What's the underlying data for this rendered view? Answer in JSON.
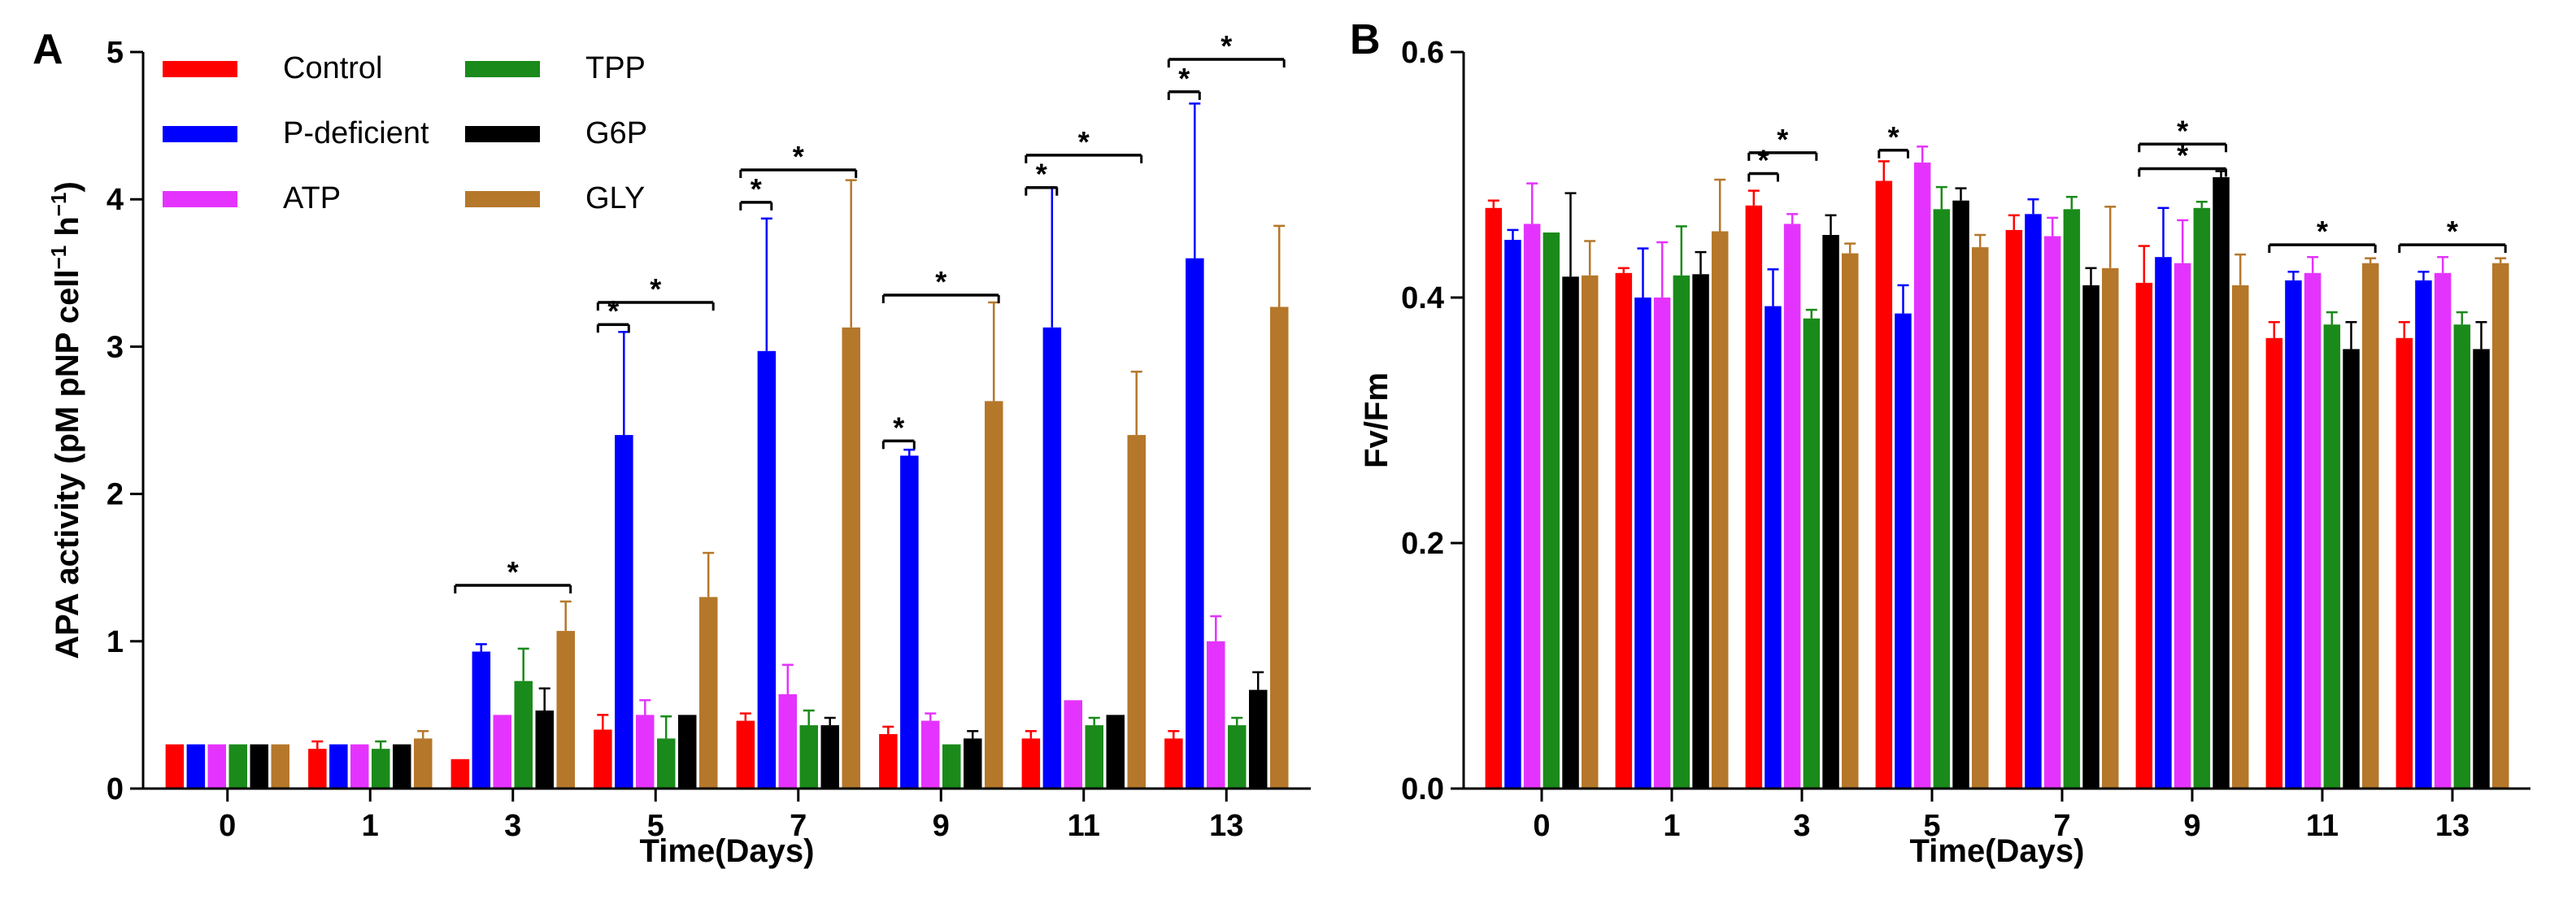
{
  "chart_data": [
    {
      "panel": "A",
      "type": "bar",
      "categories": [
        "0",
        "1",
        "3",
        "5",
        "7",
        "9",
        "11",
        "13"
      ],
      "xlabel": "Time(Days)",
      "ylabel": "APA activity (pM pNP cell",
      "ylabel_sup1": "−1",
      "ylabel_mid": " h",
      "ylabel_sup2": "−1",
      "ylabel_end": ")",
      "ylim": [
        0,
        5
      ],
      "yticks": [
        "0",
        "1",
        "2",
        "3",
        "4",
        "5"
      ],
      "series": [
        {
          "name": "Control",
          "color": "#ff0000",
          "values": [
            0.3,
            0.27,
            0.2,
            0.4,
            0.46,
            0.37,
            0.34,
            0.34
          ],
          "errors": [
            0.0,
            0.05,
            0.0,
            0.1,
            0.05,
            0.05,
            0.05,
            0.05
          ]
        },
        {
          "name": "P-deficient",
          "color": "#0000ff",
          "values": [
            0.3,
            0.3,
            0.93,
            2.4,
            2.97,
            2.26,
            3.13,
            3.6
          ],
          "errors": [
            0.0,
            0.0,
            0.05,
            0.7,
            0.9,
            0.04,
            0.95,
            1.05
          ]
        },
        {
          "name": "ATP",
          "color": "#e533ff",
          "values": [
            0.3,
            0.3,
            0.5,
            0.5,
            0.64,
            0.46,
            0.6,
            1.0
          ],
          "errors": [
            0.0,
            0.0,
            0.0,
            0.1,
            0.2,
            0.05,
            0.0,
            0.17
          ]
        },
        {
          "name": "TPP",
          "color": "#1a8a1a",
          "values": [
            0.3,
            0.27,
            0.73,
            0.34,
            0.43,
            0.3,
            0.43,
            0.43
          ],
          "errors": [
            0.0,
            0.05,
            0.22,
            0.15,
            0.1,
            0.0,
            0.05,
            0.05
          ]
        },
        {
          "name": "G6P",
          "color": "#000000",
          "values": [
            0.3,
            0.3,
            0.53,
            0.5,
            0.43,
            0.34,
            0.5,
            0.67
          ],
          "errors": [
            0.0,
            0.0,
            0.15,
            0.0,
            0.05,
            0.05,
            0.0,
            0.12
          ]
        },
        {
          "name": "GLY",
          "color": "#b5772a",
          "values": [
            0.3,
            0.34,
            1.07,
            1.3,
            3.13,
            2.63,
            2.4,
            3.27
          ],
          "errors": [
            0.0,
            0.05,
            0.2,
            0.3,
            1.0,
            0.67,
            0.43,
            0.55
          ]
        }
      ],
      "significance": [
        {
          "from": 2,
          "from_series": 0,
          "to": 2,
          "to_series": 5,
          "y": 1.38,
          "label": "*"
        },
        {
          "from": 3,
          "from_series": 0,
          "to": 3,
          "to_series": 1,
          "y": 3.15,
          "label": "*"
        },
        {
          "from": 3,
          "from_series": 0,
          "to": 3,
          "to_series": 5,
          "y": 3.3,
          "label": "*"
        },
        {
          "from": 4,
          "from_series": 0,
          "to": 4,
          "to_series": 1,
          "y": 3.98,
          "label": "*"
        },
        {
          "from": 4,
          "from_series": 0,
          "to": 4,
          "to_series": 5,
          "y": 4.2,
          "label": "*"
        },
        {
          "from": 5,
          "from_series": 0,
          "to": 5,
          "to_series": 1,
          "y": 2.36,
          "label": "*"
        },
        {
          "from": 5,
          "from_series": 0,
          "to": 5,
          "to_series": 5,
          "y": 3.35,
          "label": "*"
        },
        {
          "from": 6,
          "from_series": 0,
          "to": 6,
          "to_series": 1,
          "y": 4.08,
          "label": "*"
        },
        {
          "from": 6,
          "from_series": 0,
          "to": 6,
          "to_series": 5,
          "y": 4.3,
          "label": "*"
        },
        {
          "from": 7,
          "from_series": 0,
          "to": 7,
          "to_series": 1,
          "y": 4.73,
          "label": "*"
        },
        {
          "from": 7,
          "from_series": 0,
          "to": 7,
          "to_series": 5,
          "y": 4.95,
          "label": "*"
        }
      ]
    },
    {
      "panel": "B",
      "type": "bar",
      "categories": [
        "0",
        "1",
        "3",
        "5",
        "7",
        "9",
        "11",
        "13"
      ],
      "xlabel": "Time(Days)",
      "ylabel": "Fv/Fm",
      "ylim": [
        0,
        0.6
      ],
      "yticks": [
        "0.0",
        "0.2",
        "0.4",
        "0.6"
      ],
      "series": [
        {
          "name": "Control",
          "color": "#ff0000",
          "values": [
            0.473,
            0.42,
            0.475,
            0.495,
            0.455,
            0.412,
            0.367,
            0.367
          ],
          "errors": [
            0.006,
            0.004,
            0.012,
            0.016,
            0.012,
            0.03,
            0.013,
            0.013
          ]
        },
        {
          "name": "P-deficient",
          "color": "#0000ff",
          "values": [
            0.447,
            0.4,
            0.393,
            0.387,
            0.468,
            0.433,
            0.414,
            0.414
          ],
          "errors": [
            0.008,
            0.04,
            0.03,
            0.023,
            0.012,
            0.04,
            0.007,
            0.007
          ]
        },
        {
          "name": "ATP",
          "color": "#e533ff",
          "values": [
            0.46,
            0.4,
            0.46,
            0.51,
            0.45,
            0.428,
            0.42,
            0.42
          ],
          "errors": [
            0.033,
            0.045,
            0.008,
            0.013,
            0.015,
            0.035,
            0.013,
            0.013
          ]
        },
        {
          "name": "TPP",
          "color": "#1a8a1a",
          "values": [
            0.453,
            0.418,
            0.383,
            0.472,
            0.472,
            0.473,
            0.378,
            0.378
          ],
          "errors": [
            0.0,
            0.04,
            0.007,
            0.018,
            0.01,
            0.005,
            0.01,
            0.01
          ]
        },
        {
          "name": "G6P",
          "color": "#000000",
          "values": [
            0.417,
            0.419,
            0.451,
            0.479,
            0.41,
            0.498,
            0.358,
            0.358
          ],
          "errors": [
            0.068,
            0.018,
            0.016,
            0.01,
            0.014,
            0.005,
            0.022,
            0.022
          ]
        },
        {
          "name": "GLY",
          "color": "#b5772a",
          "values": [
            0.418,
            0.454,
            0.436,
            0.441,
            0.424,
            0.41,
            0.428,
            0.428
          ],
          "errors": [
            0.028,
            0.042,
            0.008,
            0.01,
            0.05,
            0.025,
            0.004,
            0.004
          ]
        }
      ],
      "significance": [
        {
          "from": 2,
          "from_series": 0,
          "to": 2,
          "to_series": 1,
          "y": 0.501,
          "label": "*"
        },
        {
          "from": 2,
          "from_series": 0,
          "to": 2,
          "to_series": 3,
          "y": 0.518,
          "label": "*"
        },
        {
          "from": 3,
          "from_series": 0,
          "to": 3,
          "to_series": 1,
          "y": 0.52,
          "label": "*"
        },
        {
          "from": 5,
          "from_series": 0,
          "to": 5,
          "to_series": 4,
          "y": 0.505,
          "label": "*"
        },
        {
          "from": 5,
          "from_series": 0,
          "to": 5,
          "to_series": 4,
          "y": 0.525,
          "label": "*"
        },
        {
          "from": 6,
          "from_series": 0,
          "to": 6,
          "to_series": 5,
          "y": 0.443,
          "label": "*"
        },
        {
          "from": 7,
          "from_series": 0,
          "to": 7,
          "to_series": 5,
          "y": 0.443,
          "label": "*"
        }
      ]
    }
  ]
}
